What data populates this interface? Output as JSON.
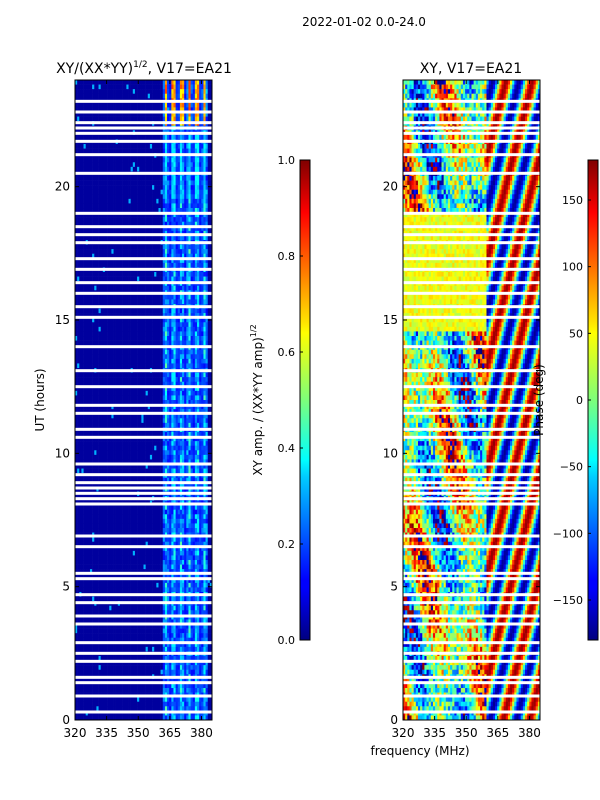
{
  "figure": {
    "suptitle": "2022-01-02 0.0-24.0",
    "xlabel_shared": "frequency (MHz)"
  },
  "chart_data": [
    {
      "type": "heatmap",
      "title": "XY/(XX*YY)",
      "title_sup": "1/2",
      "title_rest": ", V17=EA21",
      "xlabel": "",
      "ylabel": "UT (hours)",
      "xlim": [
        320,
        385
      ],
      "ylim": [
        0,
        24
      ],
      "xticks": [
        320,
        335,
        350,
        365,
        380
      ],
      "yticks": [
        0,
        5,
        10,
        15,
        20
      ],
      "colormap": "jet",
      "colorbar": {
        "label_main": "XY amp. / (XX*YY amp)",
        "label_sup": "1/2",
        "min": 0.0,
        "max": 1.0,
        "ticks": [
          "0.0",
          "0.2",
          "0.4",
          "0.6",
          "0.8",
          "1.0"
        ]
      },
      "gap_rows_ut": [
        0.3,
        0.9,
        1.4,
        1.6,
        2.2,
        2.5,
        2.9,
        3.6,
        3.9,
        4.4,
        4.7,
        5.3,
        5.5,
        6.5,
        6.9,
        8.1,
        8.3,
        8.5,
        8.7,
        8.9,
        9.2,
        9.6,
        10.6,
        10.9,
        11.5,
        11.8,
        12.5,
        13.1,
        14.0,
        15.1,
        15.5,
        16.0,
        16.4,
        16.9,
        17.3,
        17.9,
        18.2,
        18.5,
        19.0,
        20.5,
        21.2,
        21.7,
        22.0,
        22.2,
        22.4,
        22.8,
        23.2
      ]
    },
    {
      "type": "heatmap",
      "title": "XY, V17=EA21",
      "xlabel": "frequency (MHz)",
      "ylabel": "",
      "xlim": [
        320,
        385
      ],
      "ylim": [
        0,
        24
      ],
      "xticks": [
        320,
        335,
        350,
        365,
        380
      ],
      "yticks": [
        0,
        5,
        10,
        15,
        20
      ],
      "colormap": "jet",
      "colorbar": {
        "label_main": "Phase (deg)",
        "min": -180,
        "max": 180,
        "ticks": [
          "−150",
          "−100",
          "−50",
          "0",
          "50",
          "100",
          "150"
        ]
      },
      "gap_rows_ut": [
        0.3,
        0.9,
        1.4,
        1.6,
        2.2,
        2.5,
        2.9,
        3.6,
        3.9,
        4.4,
        4.7,
        5.3,
        5.5,
        6.5,
        6.9,
        8.1,
        8.3,
        8.5,
        8.7,
        8.9,
        9.2,
        9.6,
        10.6,
        10.9,
        11.5,
        11.8,
        12.5,
        13.1,
        14.0,
        15.1,
        15.5,
        16.0,
        16.4,
        16.9,
        17.3,
        17.9,
        18.2,
        18.5,
        19.0,
        20.5,
        21.2,
        21.7,
        22.0,
        22.2,
        22.4,
        22.8,
        23.2
      ]
    }
  ]
}
